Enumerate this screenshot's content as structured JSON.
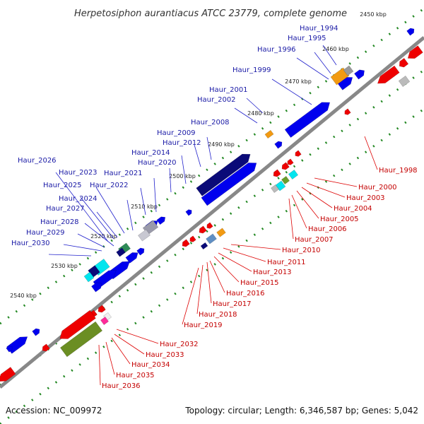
{
  "title": "Herpetosiphon aurantiacus ATCC 23779, complete genome",
  "footer": {
    "accession": "Accession: NC_009972",
    "topology": "Topology: circular; Length: 6,346,587 bp; Genes: 5,042"
  },
  "colors": {
    "forward": "#0000ee",
    "reverse": "#ee0000",
    "backbone": "#888888",
    "dots": "#228822",
    "forward_label": "#1a1aa6",
    "reverse_label": "#c40000"
  },
  "scale_labels": [
    "2450 kbp",
    "2460 kbp",
    "2470 kbp",
    "2480 kbp",
    "2490 kbp",
    "2500 kbp",
    "2510 kbp",
    "2520 kbp",
    "2530 kbp",
    "2540 kbp"
  ],
  "forward_genes": [
    "Haur_1994",
    "Haur_1995",
    "Haur_1996",
    "Haur_1999",
    "Haur_2001",
    "Haur_2002",
    "Haur_2008",
    "Haur_2009",
    "Haur_2012",
    "Haur_2014",
    "Haur_2020",
    "Haur_2021",
    "Haur_2022",
    "Haur_2023",
    "Haur_2025",
    "Haur_2024",
    "Haur_2026",
    "Haur_2027",
    "Haur_2028",
    "Haur_2029",
    "Haur_2030"
  ],
  "reverse_genes": [
    "Haur_1998",
    "Haur_2000",
    "Haur_2003",
    "Haur_2004",
    "Haur_2005",
    "Haur_2006",
    "Haur_2007",
    "Haur_2010",
    "Haur_2011",
    "Haur_2013",
    "Haur_2015",
    "Haur_2016",
    "Haur_2017",
    "Haur_2018",
    "Haur_2019",
    "Haur_2032",
    "Haur_2033",
    "Haur_2034",
    "Haur_2035",
    "Haur_2036"
  ]
}
